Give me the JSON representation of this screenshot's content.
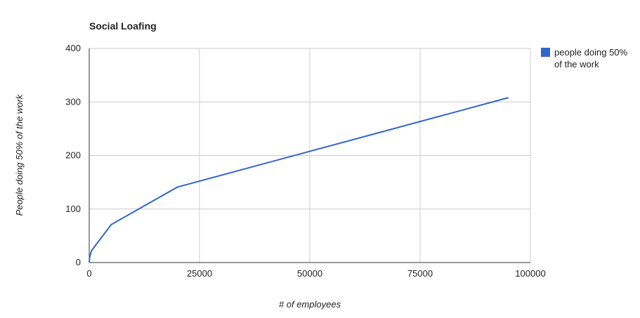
{
  "chart_data": {
    "type": "line",
    "title": "Social Loafing",
    "x_label": "# of employees",
    "y_label": "People doing 50% of the work",
    "x": [
      0,
      100,
      500,
      5000,
      20000,
      95000
    ],
    "series": [
      {
        "name": "people doing 50% of the work",
        "color": "#3366cc",
        "values": [
          0,
          10,
          22,
          71,
          141,
          308
        ]
      }
    ],
    "xlim": [
      0,
      100000
    ],
    "xticks": [
      0,
      25000,
      50000,
      75000,
      100000
    ],
    "ylim": [
      0,
      400
    ],
    "yticks": [
      0,
      100,
      200,
      300,
      400
    ],
    "grid": true,
    "legend": "right"
  }
}
